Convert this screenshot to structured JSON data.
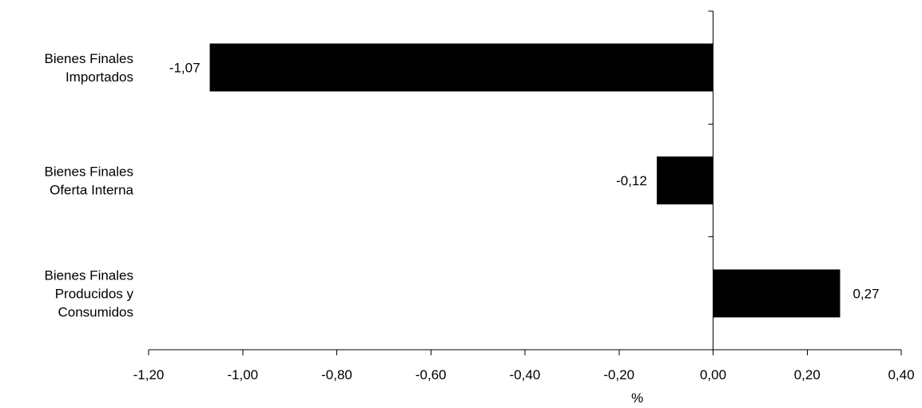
{
  "chart_data": {
    "type": "bar",
    "orientation": "horizontal",
    "categories": [
      [
        "Bienes Finales",
        "Importados"
      ],
      [
        "Bienes Finales",
        "Oferta Interna"
      ],
      [
        "Bienes Finales",
        "Producidos y",
        "Consumidos"
      ]
    ],
    "series": [
      {
        "values": [
          -1.07,
          -0.12,
          0.27
        ],
        "data_labels": [
          "-1,07",
          "-0,12",
          "0,27"
        ],
        "color": "#000000"
      }
    ],
    "xlabel": "%",
    "xlim": [
      -1.2,
      0.4
    ],
    "x_ticks": [
      -1.2,
      -1.0,
      -0.8,
      -0.6,
      -0.4,
      -0.2,
      0.0,
      0.2,
      0.4
    ],
    "x_tick_labels": [
      "-1,20",
      "-1,00",
      "-0,80",
      "-0,60",
      "-0,40",
      "-0,20",
      "0,00",
      "0,20",
      "0,40"
    ],
    "grid": false,
    "legend": "none"
  }
}
